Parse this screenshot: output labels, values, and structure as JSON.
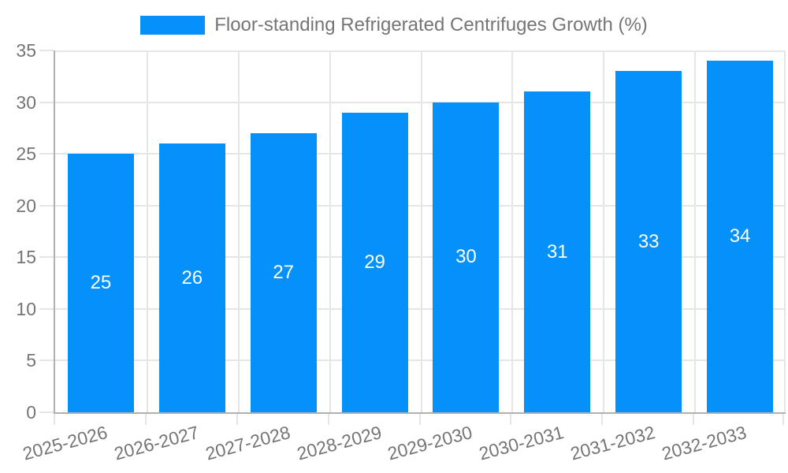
{
  "legend": {
    "label": "Floor-standing Refrigerated Centrifuges Growth (%)"
  },
  "colors": {
    "background": "#ffffff",
    "bar": "#0590fa",
    "bar_label": "#ffffff",
    "axis": "#b0b0b0",
    "grid": "#e5e5e5",
    "tick_text": "#757575"
  },
  "chart_data": {
    "type": "bar",
    "title": "Floor-standing Refrigerated Centrifuges Growth (%)",
    "categories": [
      "2025-2026",
      "2026-2027",
      "2027-2028",
      "2028-2029",
      "2029-2030",
      "2030-2031",
      "2031-2032",
      "2032-2033"
    ],
    "values": [
      25,
      26,
      27,
      29,
      30,
      31,
      33,
      34
    ],
    "xlabel": "",
    "ylabel": "",
    "ylim": [
      0,
      35
    ],
    "yticks": [
      0,
      5,
      10,
      15,
      20,
      25,
      30,
      35
    ],
    "grid": true,
    "legend_position": "top",
    "bar_value_labels": true,
    "x_label_rotation_deg": -15
  }
}
